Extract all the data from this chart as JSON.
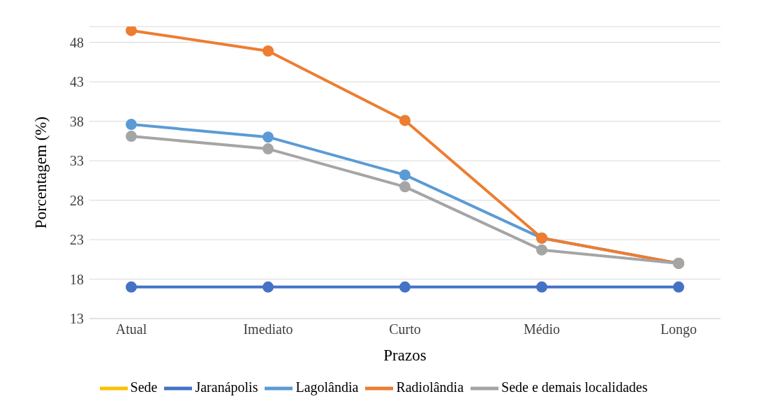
{
  "chart_data": {
    "type": "line",
    "xlabel": "Prazos",
    "ylabel": "Porcentagem (%)",
    "categories": [
      "Atual",
      "Imediato",
      "Curto",
      "Médio",
      "Longo"
    ],
    "series": [
      {
        "name": "Sede",
        "color": "#ffc000",
        "values": [
          null,
          null,
          null,
          null,
          null
        ]
      },
      {
        "name": "Jaranápolis",
        "color": "#4472c4",
        "values": [
          17,
          17,
          17,
          17,
          17
        ]
      },
      {
        "name": "Lagolândia",
        "color": "#5b9bd5",
        "values": [
          37.6,
          36,
          31.2,
          23.2,
          20
        ]
      },
      {
        "name": "Radiolândia",
        "color": "#ed7d31",
        "values": [
          49.5,
          46.9,
          38.1,
          23.2,
          20
        ]
      },
      {
        "name": "Sede e demais localidades",
        "color": "#a5a5a5",
        "values": [
          36.1,
          34.5,
          29.7,
          21.7,
          20
        ]
      }
    ],
    "ylim": [
      13,
      50
    ],
    "yticks": [
      13,
      18,
      23,
      28,
      33,
      38,
      43,
      48
    ],
    "grid": "y",
    "legend": "bottom",
    "marker": "circle",
    "line_style": "solid"
  }
}
